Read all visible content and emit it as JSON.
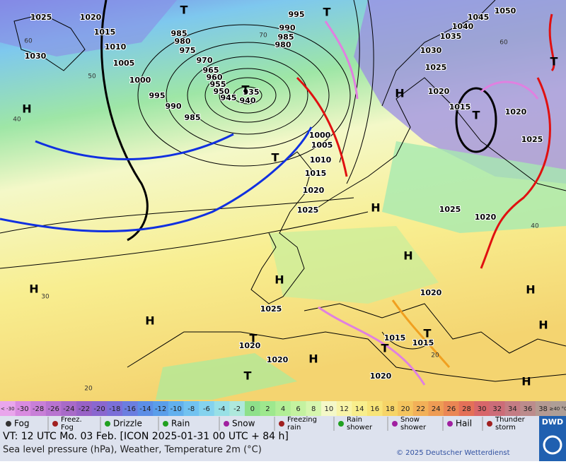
{
  "map": {
    "pressure_labels": [
      1025,
      1020,
      1015,
      1010,
      1005,
      1000,
      995,
      990,
      985,
      1030,
      985,
      980,
      975,
      970,
      965,
      960,
      955,
      950,
      945,
      940,
      935,
      995,
      990,
      985,
      980,
      1045,
      1050,
      1040,
      1035,
      1030,
      1025,
      1020,
      1015,
      1020,
      1025,
      1000,
      1005,
      1010,
      1015,
      1020,
      1025,
      1025,
      1020,
      1025,
      1020,
      1015,
      1015,
      1020,
      1020,
      1020
    ],
    "highs": [
      "H",
      "H",
      "H",
      "H",
      "H",
      "H",
      "H",
      "H",
      "H",
      "H",
      "H"
    ],
    "lows": [
      "T",
      "T",
      "T",
      "T",
      "T",
      "T",
      "T",
      "T",
      "T",
      "T"
    ],
    "temp_labels": [
      60,
      50,
      40,
      30,
      20,
      60,
      40,
      20,
      70
    ]
  },
  "color_scale": {
    "labels": [
      "< -30",
      -30,
      -28,
      -26,
      -24,
      -22,
      -20,
      -18,
      -16,
      -14,
      -12,
      -10,
      -8,
      -6,
      -4,
      -2,
      0,
      2,
      4,
      6,
      8,
      10,
      12,
      14,
      16,
      18,
      20,
      22,
      24,
      26,
      28,
      30,
      32,
      34,
      36,
      38,
      "≥40 °C"
    ],
    "colors": [
      "#e9a6ec",
      "#d98be0",
      "#c87fd8",
      "#b873d0",
      "#a86ac8",
      "#9862c6",
      "#8a67cf",
      "#7b6fd8",
      "#6b7ee0",
      "#5c8ee6",
      "#5a9eea",
      "#62b0ee",
      "#72c2f0",
      "#84d2ee",
      "#98e0e6",
      "#aee8dc",
      "#8ee08a",
      "#9ee88e",
      "#b2ee96",
      "#c4f2a0",
      "#d6f6ae",
      "#f4f8c8",
      "#f8f4a8",
      "#f8ee8c",
      "#f8e478",
      "#f6d468",
      "#f4c45e",
      "#f2b058",
      "#ee9c54",
      "#ea8654",
      "#e47058",
      "#d8666a",
      "#cc6c78",
      "#c47c84",
      "#bc8c8c",
      "#b49a92",
      "#ae9e96"
    ]
  },
  "legend": {
    "items": [
      "Fog",
      "Freez.\nFog",
      "Drizzle",
      "Rain",
      "Snow",
      "Freezing\nrain",
      "Rain\nshower",
      "Snow\nshower",
      "Hail",
      "Thunder\nstorm"
    ]
  },
  "footer": {
    "valid_time": "VT: 12 UTC Mo.  03 Feb. [ICON 2025-01-31  00 UTC + 84 h]",
    "description": "Sea level pressure (hPa), Weather, Temperature 2m (°C)",
    "copyright": "© 2025 Deutscher Wetterdienst",
    "logo": "DWD"
  }
}
